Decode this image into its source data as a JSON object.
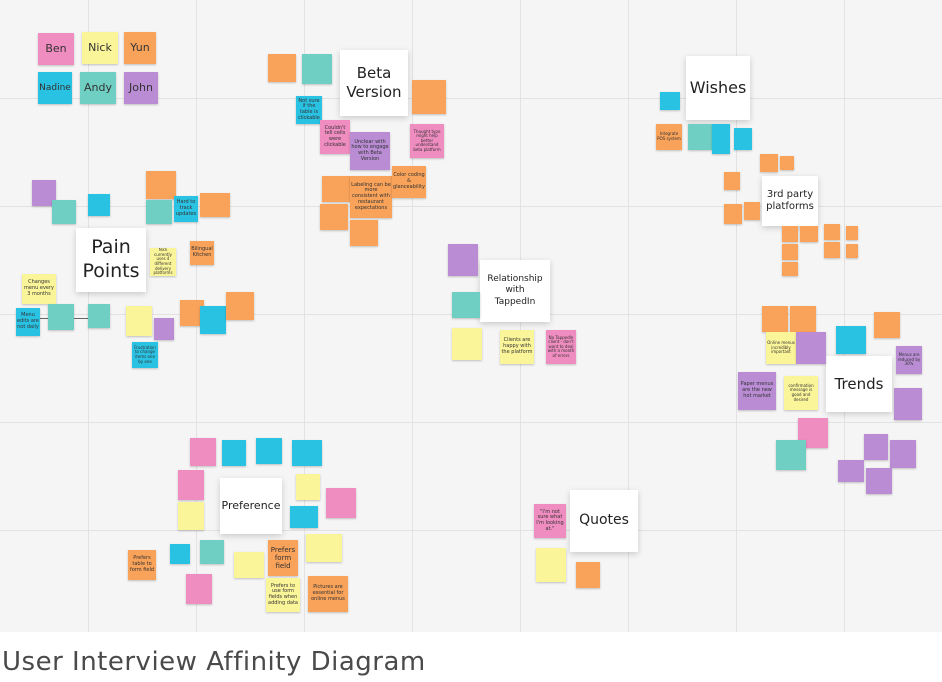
{
  "caption": "User Interview Affinity Diagram",
  "colors": {
    "pink": "#ef8cc0",
    "orange": "#f8a25a",
    "yellow": "#fbf59a",
    "blue": "#29c2e3",
    "teal": "#6fcfc3",
    "purple": "#b98cd4"
  },
  "participants": {
    "ben": "Ben",
    "nick": "Nick",
    "yun": "Yun",
    "nadine": "Nadine",
    "andy": "Andy",
    "john": "John"
  },
  "titles": {
    "pain_points": "Pain\nPoints",
    "beta_version": "Beta\nVersion",
    "wishes": "Wishes",
    "third_party": "3rd party\nplatforms",
    "relationship": "Relationship\nwith\nTappedIn",
    "trends": "Trends",
    "preference": "Preference",
    "quotes": "Quotes"
  },
  "notes": {
    "pp_changes_menu": "Changes menu every 3 months",
    "pp_menu_edits": "Menu edits are not daily",
    "pp_hard_to_track": "Hard to track updates",
    "pp_bilingual": "Bilingual Kitchen",
    "pp_nick_uses": "Nick currently uses 4 different delivery platforms",
    "pp_frustration": "Frustration to change items one by one",
    "beta_not_sure": "Not sure if the table is clickable",
    "beta_couldnt_tell": "Couldn't tell cells were clickable",
    "beta_unclear": "Unclear with how to engage with Beta Version",
    "beta_labeling": "Labeling can be more consistent with restaurant expectations",
    "beta_color": "Color coding & glanceability",
    "beta_thought_type": "Thought type might help better understand beta platform",
    "wish_pos": "Integrate POS system",
    "rel_clients_happy": "Clients are happy with the platform",
    "rel_no_tappedin": "No TappedIn client - don't want to deal with a month of errors",
    "trends_paper_menus": "Paper menus are the new hot market",
    "trends_online_menus": "Online menus incredibly important",
    "trends_confirmation": "confirmation message is good and desired",
    "trends_menus_reduced": "Menus are reduced by 30%",
    "pref_form_field": "Prefers form field",
    "pref_table": "Prefers table to form field",
    "pref_use_form": "Prefers to use form fields when adding data",
    "pref_pictures": "Pictures are essential for online menus",
    "quote_not_sure": "\"I'm not sure what I'm looking at.\""
  }
}
